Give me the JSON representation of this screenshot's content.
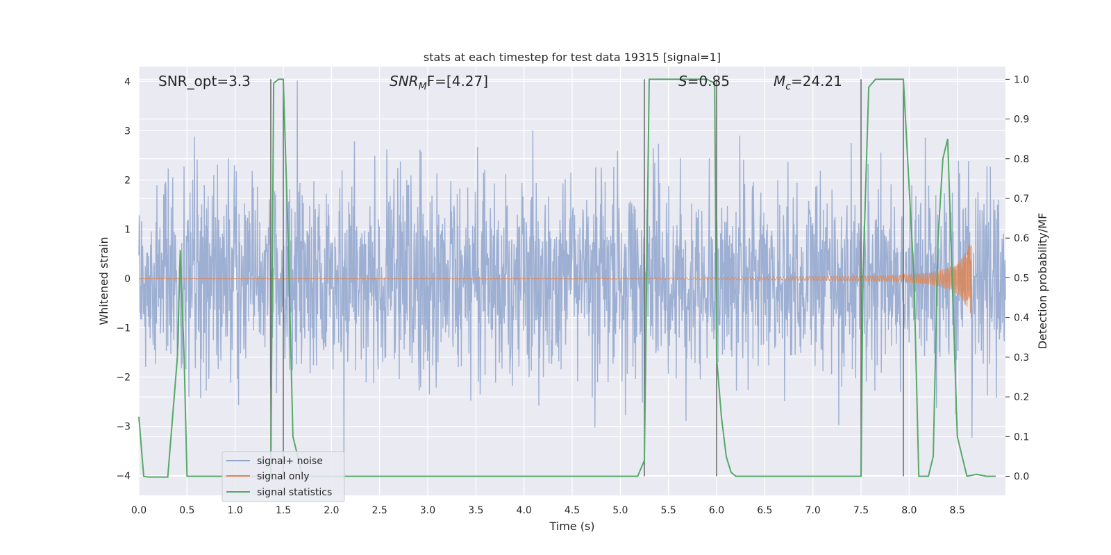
{
  "chart_data": {
    "type": "line",
    "title": "stats at each timestep for test data 19315 [signal=1]",
    "xlabel": "Time (s)",
    "ylabel": "Whitened strain",
    "ylabel_right": "Detection probability/MF",
    "xlim": [
      0,
      9.0
    ],
    "ylim": [
      -4.4,
      4.3
    ],
    "ylim_right": [
      -0.048,
      1.032
    ],
    "x_ticks": [
      0.0,
      0.5,
      1.0,
      1.5,
      2.0,
      2.5,
      3.0,
      3.5,
      4.0,
      4.5,
      5.0,
      5.5,
      6.0,
      6.5,
      7.0,
      7.5,
      8.0,
      8.5
    ],
    "y_ticks": [
      -4,
      -3,
      -2,
      -1,
      0,
      1,
      2,
      3,
      4
    ],
    "y_ticks_right": [
      0.0,
      0.1,
      0.2,
      0.3,
      0.4,
      0.5,
      0.6,
      0.7,
      0.8,
      0.9,
      1.0
    ],
    "grid": true,
    "legend_placement": "lower-left",
    "annotations": {
      "snr_opt": "SNR_opt=3.3",
      "snr_mf_pre": "SNR",
      "snr_mf_sub": "M",
      "snr_mf_post": "F=[4.27]",
      "s_pre": "S",
      "s_post": "=0.85",
      "mc_pre": "M",
      "mc_sub": "c",
      "mc_post": "=24.21"
    },
    "vertical_lines_x": [
      1.37,
      1.5,
      5.25,
      6.0,
      7.5,
      7.94
    ],
    "series": [
      {
        "name": "signal+ noise",
        "color": "#8fa4cc",
        "kind": "noise",
        "samples": 2304,
        "sigma": 1.0,
        "x_range": [
          0,
          9.0
        ]
      },
      {
        "name": "signal only",
        "color": "#dd8452",
        "kind": "chirp",
        "x_range": [
          0,
          8.65
        ],
        "x": [
          0.0,
          5.0,
          6.0,
          6.5,
          7.0,
          7.5,
          7.8,
          8.0,
          8.2,
          8.3,
          8.4,
          8.5,
          8.55,
          8.6,
          8.63,
          8.65
        ],
        "amplitude": [
          0.005,
          0.01,
          0.02,
          0.03,
          0.04,
          0.05,
          0.06,
          0.08,
          0.12,
          0.16,
          0.22,
          0.32,
          0.42,
          0.58,
          0.72,
          0.8
        ]
      },
      {
        "name": "signal statistics",
        "color": "#55a868",
        "kind": "line",
        "axis": "right",
        "x": [
          0.0,
          0.05,
          0.1,
          0.2,
          0.3,
          0.4,
          0.43,
          0.47,
          0.5,
          0.52,
          0.6,
          1.0,
          1.2,
          1.3,
          1.37,
          1.4,
          1.45,
          1.5,
          1.55,
          1.6,
          1.7,
          2.0,
          3.0,
          4.0,
          5.0,
          5.18,
          5.25,
          5.3,
          5.35,
          5.5,
          5.7,
          5.9,
          5.98,
          6.0,
          6.05,
          6.1,
          6.15,
          6.2,
          6.3,
          6.5,
          7.0,
          7.5,
          7.52,
          7.58,
          7.65,
          7.75,
          7.94,
          8.05,
          8.1,
          8.15,
          8.2,
          8.25,
          8.3,
          8.35,
          8.4,
          8.5,
          8.6,
          8.7,
          8.8,
          8.9
        ],
        "y": [
          0.15,
          0.0,
          -0.002,
          -0.002,
          -0.002,
          0.3,
          0.57,
          0.3,
          0.0,
          0.0,
          0.0,
          0.0,
          0.0,
          0.0,
          0.0,
          0.99,
          1.0,
          1.0,
          0.6,
          0.1,
          0.0,
          0.0,
          0.0,
          0.0,
          0.0,
          0.0,
          0.04,
          1.0,
          1.0,
          1.0,
          1.0,
          1.0,
          0.99,
          0.3,
          0.15,
          0.05,
          0.01,
          0.0,
          0.0,
          0.0,
          0.0,
          0.0,
          0.5,
          0.98,
          1.0,
          1.0,
          1.0,
          0.5,
          0.0,
          0.0,
          0.0,
          0.05,
          0.6,
          0.8,
          0.85,
          0.1,
          0.0,
          0.005,
          0.0,
          0.0
        ]
      }
    ]
  }
}
